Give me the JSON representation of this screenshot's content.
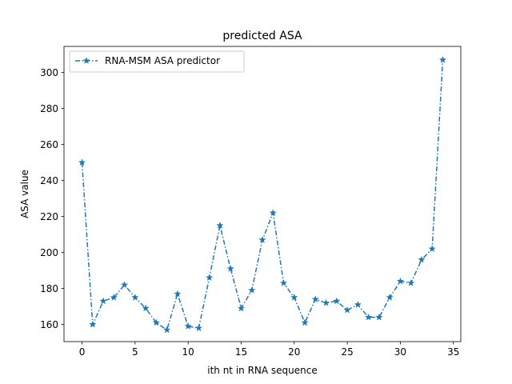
{
  "chart_data": {
    "type": "line",
    "title": "predicted ASA",
    "xlabel": "ith nt in RNA sequence",
    "ylabel": "ASA value",
    "xlim": [
      -1.7,
      35.7
    ],
    "ylim": [
      150.5,
      314.5
    ],
    "xticks": [
      0,
      5,
      10,
      15,
      20,
      25,
      30,
      35
    ],
    "yticks": [
      160,
      180,
      200,
      220,
      240,
      260,
      280,
      300
    ],
    "grid": false,
    "legend_position": "top-left",
    "series": [
      {
        "name": "RNA-MSM ASA predictor",
        "color": "#1f77b4",
        "line_style": "dash-dot",
        "marker": "star",
        "x": [
          0,
          1,
          2,
          3,
          4,
          5,
          6,
          7,
          8,
          9,
          10,
          11,
          12,
          13,
          14,
          15,
          16,
          17,
          18,
          19,
          20,
          21,
          22,
          23,
          24,
          25,
          26,
          27,
          28,
          29,
          30,
          31,
          32,
          33,
          34
        ],
        "y": [
          250,
          160,
          173,
          175,
          182,
          175,
          169,
          161,
          157,
          177,
          159,
          158,
          186,
          215,
          191,
          169,
          179,
          207,
          222,
          183,
          175,
          161,
          174,
          172,
          173,
          168,
          171,
          164,
          164,
          175,
          184,
          183,
          196,
          202,
          307
        ]
      }
    ]
  }
}
